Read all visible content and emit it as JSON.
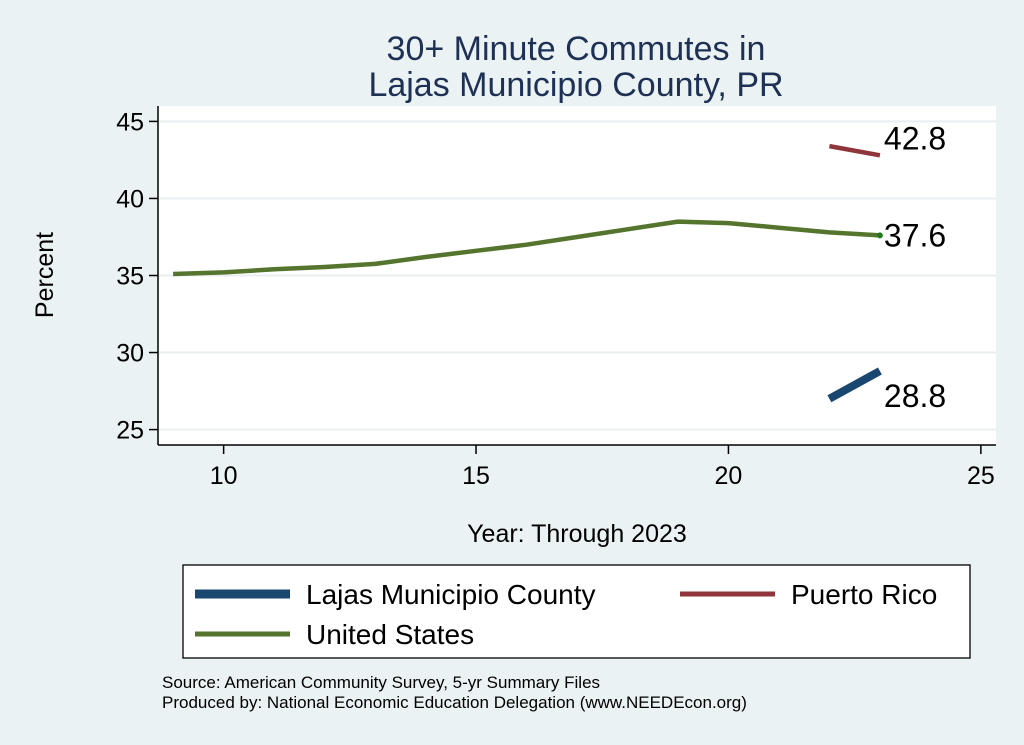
{
  "chart_data": {
    "type": "line",
    "title": [
      "30+ Minute Commutes in",
      "Lajas Municipio County, PR"
    ],
    "xlabel": "Year: Through 2023",
    "ylabel": "Percent",
    "xlim": [
      8.7,
      25.3
    ],
    "ylim": [
      24.0,
      46.0
    ],
    "xticks": [
      10,
      15,
      20,
      25
    ],
    "yticks": [
      25,
      30,
      35,
      40,
      45
    ],
    "grid": true,
    "series": [
      {
        "key": "lajas",
        "name": "Lajas Municipio County",
        "color": "#1a476f",
        "x": [
          22,
          23
        ],
        "y": [
          27.0,
          28.8
        ],
        "end_label": "28.8"
      },
      {
        "key": "pr",
        "name": "Puerto Rico",
        "color": "#90353b",
        "x": [
          22,
          23
        ],
        "y": [
          43.4,
          42.8
        ],
        "end_label": "42.8"
      },
      {
        "key": "us",
        "name": "United States",
        "color": "#55752f",
        "x": [
          9,
          10,
          11,
          12,
          13,
          14,
          15,
          16,
          17,
          18,
          19,
          20,
          21,
          22,
          23
        ],
        "y": [
          35.1,
          35.2,
          35.4,
          35.55,
          35.75,
          36.2,
          36.6,
          37.0,
          37.5,
          38.0,
          38.5,
          38.4,
          38.1,
          37.8,
          37.6
        ],
        "end_label": "37.6",
        "end_marker_color": "#1f7a1f"
      }
    ],
    "legend": {
      "position": "bottom",
      "order": [
        "lajas",
        "pr",
        "us"
      ]
    }
  },
  "notes": [
    "Source: American Community Survey, 5-yr Summary Files",
    "Produced by: National Economic Education Delegation (www.NEEDEcon.org)"
  ]
}
